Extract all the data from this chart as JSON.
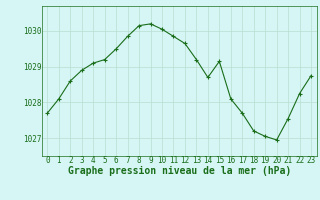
{
  "x": [
    0,
    1,
    2,
    3,
    4,
    5,
    6,
    7,
    8,
    9,
    10,
    11,
    12,
    13,
    14,
    15,
    16,
    17,
    18,
    19,
    20,
    21,
    22,
    23
  ],
  "y": [
    1027.7,
    1028.1,
    1028.6,
    1028.9,
    1029.1,
    1029.2,
    1029.5,
    1029.85,
    1030.15,
    1030.2,
    1030.05,
    1029.85,
    1029.65,
    1029.2,
    1028.7,
    1029.15,
    1028.1,
    1027.7,
    1027.2,
    1027.05,
    1026.95,
    1027.55,
    1028.25,
    1028.75
  ],
  "line_color": "#1a6e1a",
  "marker": "+",
  "marker_size": 3,
  "bg_color": "#d6f5f5",
  "grid_color": "#b8ddd0",
  "xlabel": "Graphe pression niveau de la mer (hPa)",
  "xlabel_color": "#1a6e1a",
  "xlabel_fontsize": 7,
  "tick_color": "#1a6e1a",
  "tick_fontsize": 5.5,
  "yticks": [
    1027,
    1028,
    1029,
    1030
  ],
  "ylim": [
    1026.5,
    1030.7
  ],
  "xlim": [
    -0.5,
    23.5
  ]
}
